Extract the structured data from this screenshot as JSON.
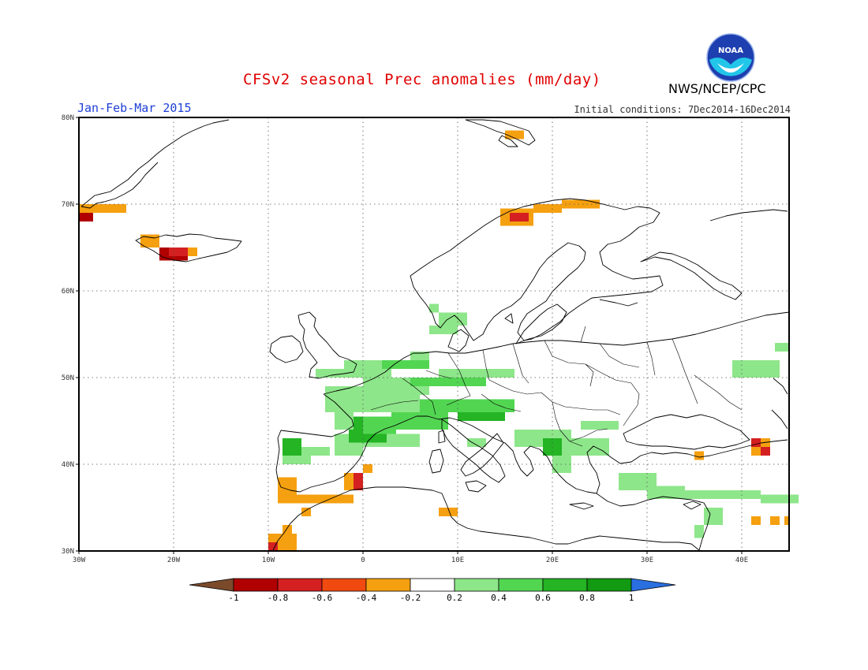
{
  "title": "CFSv2 seasonal Prec anomalies (mm/day)",
  "period": "Jan-Feb-Mar 2015",
  "initial_conditions": "Initial conditions: 7Dec2014-16Dec2014",
  "agency": "NWS/NCEP/CPC",
  "logo_text": "NOAA",
  "map": {
    "lon_range": [
      -30,
      45
    ],
    "lat_range": [
      30,
      80
    ],
    "lon_labels": [
      "30W",
      "20W",
      "10W",
      "0",
      "10E",
      "20E",
      "30E",
      "40E"
    ],
    "lat_labels": [
      "30N",
      "40N",
      "50N",
      "60N",
      "70N",
      "80N"
    ]
  },
  "colorbar": {
    "labels": [
      "-1",
      "-0.8",
      "-0.6",
      "-0.4",
      "-0.2",
      "0.2",
      "0.4",
      "0.6",
      "0.8",
      "1"
    ],
    "colors": [
      "#7a4a2a",
      "#b00000",
      "#d42020",
      "#f04a10",
      "#f5a010",
      "#ffffff",
      "#8ee68a",
      "#52d652",
      "#24b424",
      "#129a12",
      "#2a6fe0"
    ]
  },
  "anomalies": {
    "unit": "mm/day",
    "palette": {
      "dry_4": "#b00000",
      "dry_3": "#d42020",
      "dry_2": "#f04a10",
      "dry_1": "#f5a010",
      "wet_1": "#8ee68a",
      "wet_2": "#52d652",
      "wet_3": "#24b424",
      "wet_4": "#129a12"
    },
    "cells": [
      {
        "lon": -30,
        "lat": 69,
        "w": 5,
        "h": 1,
        "c": "dry_1"
      },
      {
        "lon": -30,
        "lat": 68,
        "w": 1.5,
        "h": 1,
        "c": "dry_4"
      },
      {
        "lon": -23.5,
        "lat": 65,
        "w": 2,
        "h": 1.5,
        "c": "dry_1"
      },
      {
        "lon": -21.5,
        "lat": 63.5,
        "w": 3,
        "h": 1.5,
        "c": "dry_4"
      },
      {
        "lon": -20.5,
        "lat": 64,
        "w": 2,
        "h": 1,
        "c": "dry_3"
      },
      {
        "lon": -18.5,
        "lat": 64,
        "w": 1,
        "h": 1,
        "c": "dry_1"
      },
      {
        "lon": 14.5,
        "lat": 67.5,
        "w": 3.5,
        "h": 2,
        "c": "dry_1"
      },
      {
        "lon": 15.5,
        "lat": 68,
        "w": 2,
        "h": 1,
        "c": "dry_3"
      },
      {
        "lon": 18,
        "lat": 69,
        "w": 3,
        "h": 1,
        "c": "dry_1"
      },
      {
        "lon": 21,
        "lat": 69.5,
        "w": 4,
        "h": 1,
        "c": "dry_1"
      },
      {
        "lon": 15,
        "lat": 77.5,
        "w": 2,
        "h": 1,
        "c": "dry_1"
      },
      {
        "lon": -8.5,
        "lat": 41,
        "w": 2,
        "h": 2,
        "c": "wet_3"
      },
      {
        "lon": -8.5,
        "lat": 40,
        "w": 3,
        "h": 1,
        "c": "wet_1"
      },
      {
        "lon": -6.5,
        "lat": 41,
        "w": 3,
        "h": 1,
        "c": "wet_1"
      },
      {
        "lon": -3,
        "lat": 41,
        "w": 3,
        "h": 1,
        "c": "wet_1"
      },
      {
        "lon": -3,
        "lat": 42,
        "w": 9,
        "h": 1.5,
        "c": "wet_1"
      },
      {
        "lon": -1.5,
        "lat": 42.5,
        "w": 4,
        "h": 3,
        "c": "wet_3"
      },
      {
        "lon": 0,
        "lat": 43.5,
        "w": 3.5,
        "h": 2,
        "c": "wet_2"
      },
      {
        "lon": -3,
        "lat": 44,
        "w": 2,
        "h": 2,
        "c": "wet_1"
      },
      {
        "lon": -4,
        "lat": 46,
        "w": 10,
        "h": 3,
        "c": "wet_1"
      },
      {
        "lon": 0,
        "lat": 48,
        "w": 7,
        "h": 2,
        "c": "wet_1"
      },
      {
        "lon": 3,
        "lat": 44,
        "w": 6,
        "h": 2,
        "c": "wet_2"
      },
      {
        "lon": 6,
        "lat": 46,
        "w": 10,
        "h": 1.5,
        "c": "wet_2"
      },
      {
        "lon": 10,
        "lat": 45,
        "w": 5,
        "h": 1,
        "c": "wet_3"
      },
      {
        "lon": 5,
        "lat": 49,
        "w": 8,
        "h": 1,
        "c": "wet_2"
      },
      {
        "lon": 8,
        "lat": 50,
        "w": 8,
        "h": 1,
        "c": "wet_1"
      },
      {
        "lon": -5,
        "lat": 50,
        "w": 8,
        "h": 1,
        "c": "wet_1"
      },
      {
        "lon": -2,
        "lat": 51,
        "w": 5,
        "h": 1,
        "c": "wet_1"
      },
      {
        "lon": 2,
        "lat": 51,
        "w": 5,
        "h": 1,
        "c": "wet_2"
      },
      {
        "lon": 5,
        "lat": 52,
        "w": 2,
        "h": 1,
        "c": "wet_1"
      },
      {
        "lon": 7,
        "lat": 55,
        "w": 3,
        "h": 1,
        "c": "wet_1"
      },
      {
        "lon": 8,
        "lat": 56,
        "w": 3,
        "h": 1.5,
        "c": "wet_1"
      },
      {
        "lon": 7,
        "lat": 57.5,
        "w": 1,
        "h": 1,
        "c": "wet_1"
      },
      {
        "lon": 16,
        "lat": 42,
        "w": 6,
        "h": 2,
        "c": "wet_1"
      },
      {
        "lon": 19,
        "lat": 41,
        "w": 2,
        "h": 2,
        "c": "wet_3"
      },
      {
        "lon": 21,
        "lat": 41,
        "w": 5,
        "h": 2,
        "c": "wet_1"
      },
      {
        "lon": 20,
        "lat": 39,
        "w": 2,
        "h": 2,
        "c": "wet_1"
      },
      {
        "lon": 23,
        "lat": 44,
        "w": 4,
        "h": 1,
        "c": "wet_1"
      },
      {
        "lon": 11,
        "lat": 42,
        "w": 2,
        "h": 1,
        "c": "wet_1"
      },
      {
        "lon": 27,
        "lat": 37,
        "w": 4,
        "h": 2,
        "c": "wet_1"
      },
      {
        "lon": 30,
        "lat": 36,
        "w": 4,
        "h": 1.5,
        "c": "wet_1"
      },
      {
        "lon": 34,
        "lat": 36,
        "w": 8,
        "h": 1,
        "c": "wet_1"
      },
      {
        "lon": 42,
        "lat": 35.5,
        "w": 4,
        "h": 1,
        "c": "wet_1"
      },
      {
        "lon": 36,
        "lat": 33,
        "w": 2,
        "h": 2,
        "c": "wet_1"
      },
      {
        "lon": 35,
        "lat": 31.5,
        "w": 1,
        "h": 1.5,
        "c": "wet_1"
      },
      {
        "lon": 39,
        "lat": 50,
        "w": 5,
        "h": 2,
        "c": "wet_1"
      },
      {
        "lon": 43.5,
        "lat": 53,
        "w": 1.5,
        "h": 1,
        "c": "wet_1"
      },
      {
        "lon": -9,
        "lat": 35.5,
        "w": 8,
        "h": 1,
        "c": "dry_1"
      },
      {
        "lon": -9,
        "lat": 36.5,
        "w": 2,
        "h": 2,
        "c": "dry_1"
      },
      {
        "lon": -2,
        "lat": 37,
        "w": 2,
        "h": 2,
        "c": "dry_1"
      },
      {
        "lon": -1,
        "lat": 37,
        "w": 1,
        "h": 2,
        "c": "dry_3"
      },
      {
        "lon": 0,
        "lat": 39,
        "w": 1,
        "h": 1,
        "c": "dry_1"
      },
      {
        "lon": -6.5,
        "lat": 34,
        "w": 1,
        "h": 1,
        "c": "dry_1"
      },
      {
        "lon": 8,
        "lat": 34,
        "w": 2,
        "h": 1,
        "c": "dry_1"
      },
      {
        "lon": -10,
        "lat": 30,
        "w": 3,
        "h": 2,
        "c": "dry_1"
      },
      {
        "lon": -10,
        "lat": 30,
        "w": 1,
        "h": 1,
        "c": "dry_3"
      },
      {
        "lon": -8.5,
        "lat": 32,
        "w": 1,
        "h": 1,
        "c": "dry_1"
      },
      {
        "lon": 41,
        "lat": 41,
        "w": 2,
        "h": 2,
        "c": "dry_1"
      },
      {
        "lon": 41,
        "lat": 42,
        "w": 1,
        "h": 1,
        "c": "dry_3"
      },
      {
        "lon": 42,
        "lat": 41,
        "w": 1,
        "h": 1,
        "c": "dry_3"
      },
      {
        "lon": 35,
        "lat": 40.5,
        "w": 1,
        "h": 1,
        "c": "dry_1"
      },
      {
        "lon": 43,
        "lat": 33,
        "w": 1,
        "h": 1,
        "c": "dry_1"
      },
      {
        "lon": 44.5,
        "lat": 33,
        "w": 0.5,
        "h": 1,
        "c": "dry_1"
      },
      {
        "lon": 41,
        "lat": 33,
        "w": 1,
        "h": 1,
        "c": "dry_1"
      }
    ]
  }
}
